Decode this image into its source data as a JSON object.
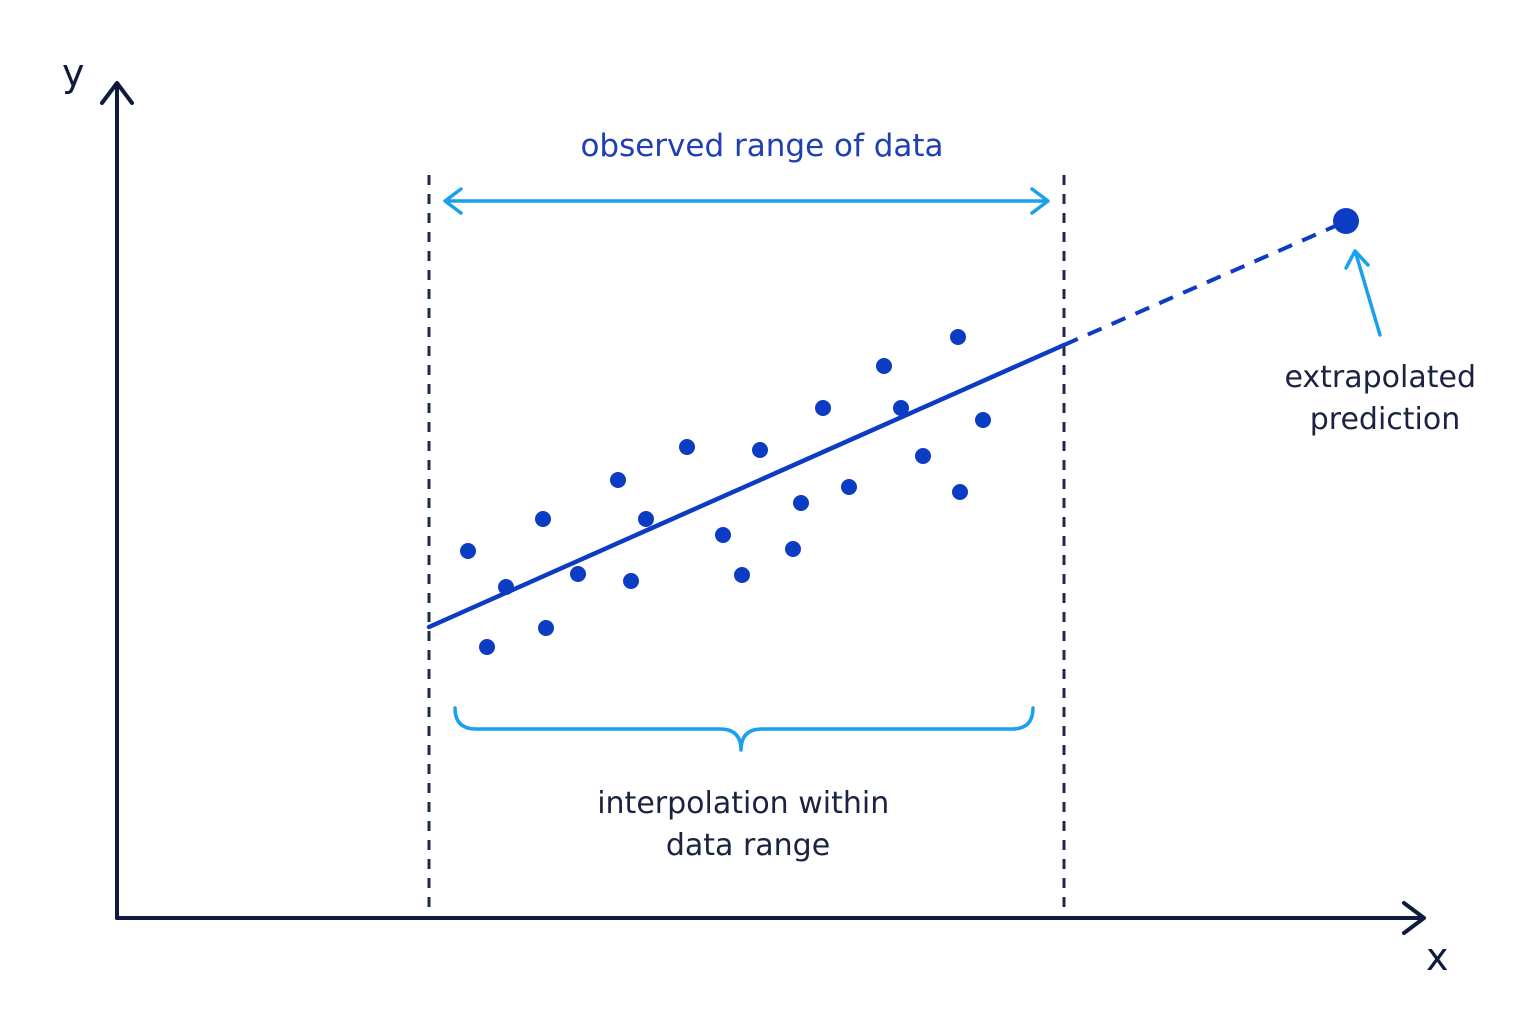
{
  "diagram": {
    "axis_labels": {
      "x": "x",
      "y": "y"
    },
    "range_label": "observed range of data",
    "interpolation_label": [
      "interpolation within",
      "data range"
    ],
    "extrapolation_label": [
      "extrapolated",
      "prediction"
    ],
    "colors": {
      "axis": "#0f1b3d",
      "points": "#0c3cc4",
      "fit_line": "#0c3cc4",
      "guides": "#1f2a44",
      "accent": "#1aa0ec",
      "range_text": "#1f3fb5",
      "text": "#1a2340"
    }
  }
}
